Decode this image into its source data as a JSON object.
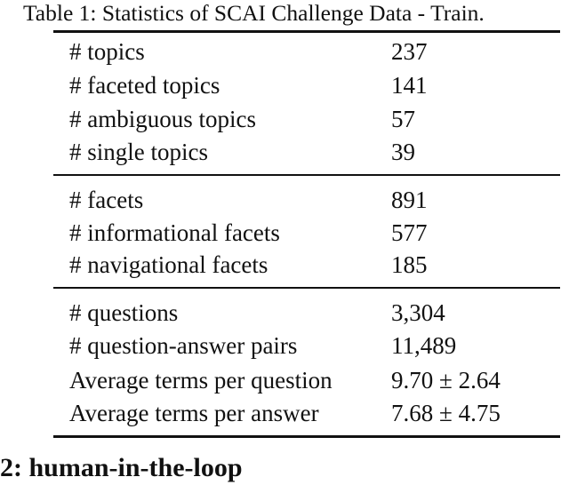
{
  "caption": "Table 1: Statistics of SCAI Challenge Data - Train.",
  "groups": [
    {
      "rows": [
        {
          "label": "# topics",
          "value": "237"
        },
        {
          "label": "# faceted topics",
          "value": "141"
        },
        {
          "label": "# ambiguous topics",
          "value": "57"
        },
        {
          "label": "# single topics",
          "value": "39"
        }
      ]
    },
    {
      "rows": [
        {
          "label": "# facets",
          "value": "891"
        },
        {
          "label": "# informational facets",
          "value": "577"
        },
        {
          "label": "# navigational facets",
          "value": "185"
        }
      ]
    },
    {
      "rows": [
        {
          "label": "# questions",
          "value": "3,304"
        },
        {
          "label": "# question-answer pairs",
          "value": "11,489"
        },
        {
          "label": "Average terms per question",
          "value": "9.70 ± 2.64"
        },
        {
          "label": "Average terms per answer",
          "value": "7.68 ± 4.75"
        }
      ]
    }
  ],
  "section_heading": "2: human-in-the-loop"
}
